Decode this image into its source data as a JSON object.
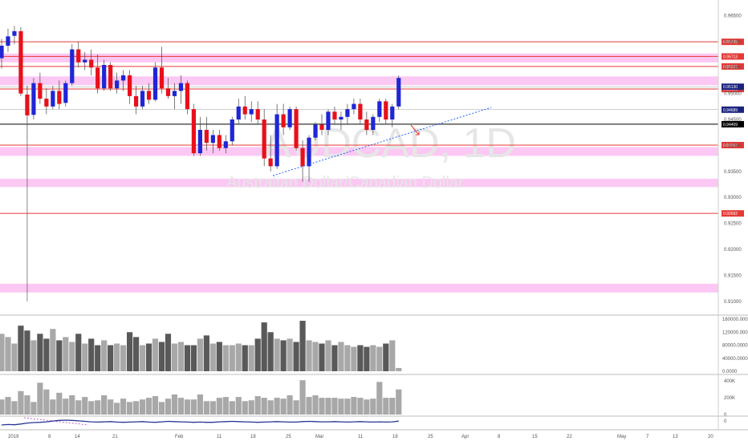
{
  "chart_data": {
    "type": "candlestick",
    "watermark": {
      "symbol": "AUDCAD, 1D",
      "name": "Australian Dollar/Canadian Dollar"
    },
    "price_axis": {
      "ticks": [
        "0.96500",
        "0.96000",
        "0.95500",
        "0.95000",
        "0.94500",
        "0.94000",
        "0.93500",
        "0.93000",
        "0.92500",
        "0.92000",
        "0.91500",
        "0.91000"
      ],
      "ylim": [
        0.9075,
        0.968
      ]
    },
    "time_axis": {
      "ticks": [
        "2019",
        "8",
        "14",
        "21",
        "Feb",
        "11",
        "18",
        "25",
        "Mar",
        "11",
        "18",
        "25",
        "Apr",
        "8",
        "15",
        "22",
        "May",
        "7",
        "13",
        "20"
      ]
    },
    "zones": [
      {
        "from": 0.9577,
        "to": 0.956
      },
      {
        "from": 0.9533,
        "to": 0.9516
      },
      {
        "from": 0.9397,
        "to": 0.938
      },
      {
        "from": 0.9336,
        "to": 0.932
      },
      {
        "from": 0.9134,
        "to": 0.9117
      }
    ],
    "levels": [
      {
        "price": 0.95995,
        "label": "0.95995",
        "color": "#e53935"
      },
      {
        "price": 0.95713,
        "label": "0.95713",
        "color": "#e53935"
      },
      {
        "price": 0.95521,
        "label": "0.95521",
        "color": "#e53935"
      },
      {
        "price": 0.95086,
        "label": "0.95086",
        "color": "#e53935"
      },
      {
        "price": 0.94007,
        "label": "0.94007",
        "color": "#e53935"
      },
      {
        "price": 0.92692,
        "label": "0.92692",
        "color": "#e53935"
      },
      {
        "price": 0.94409,
        "label": "0.94409",
        "color": "#000000"
      }
    ],
    "price_tags": [
      {
        "price": 0.9513,
        "label": "0.95130",
        "color": "#1a237e"
      },
      {
        "price": 0.94689,
        "label": "0.94689",
        "color": "#1a237e"
      }
    ],
    "trendline": {
      "from": [
        0,
        0.9342
      ],
      "to": [
        26,
        0.9473
      ],
      "note": "blue dotted support"
    },
    "candles": [
      {
        "o": 0.9568,
        "h": 0.9605,
        "l": 0.9548,
        "c": 0.9592
      },
      {
        "o": 0.9592,
        "h": 0.9625,
        "l": 0.958,
        "c": 0.961
      },
      {
        "o": 0.9611,
        "h": 0.963,
        "l": 0.9595,
        "c": 0.962
      },
      {
        "o": 0.962,
        "h": 0.9628,
        "l": 0.9495,
        "c": 0.95
      },
      {
        "o": 0.9498,
        "h": 0.9515,
        "l": 0.941,
        "c": 0.9458
      },
      {
        "o": 0.9459,
        "h": 0.953,
        "l": 0.945,
        "c": 0.952
      },
      {
        "o": 0.952,
        "h": 0.954,
        "l": 0.948,
        "c": 0.949
      },
      {
        "o": 0.949,
        "h": 0.951,
        "l": 0.946,
        "c": 0.9475
      },
      {
        "o": 0.9475,
        "h": 0.9515,
        "l": 0.947,
        "c": 0.9505
      },
      {
        "o": 0.9505,
        "h": 0.9525,
        "l": 0.947,
        "c": 0.948
      },
      {
        "o": 0.9482,
        "h": 0.9525,
        "l": 0.9475,
        "c": 0.952
      },
      {
        "o": 0.952,
        "h": 0.9595,
        "l": 0.9515,
        "c": 0.9585
      },
      {
        "o": 0.9585,
        "h": 0.96,
        "l": 0.955,
        "c": 0.956
      },
      {
        "o": 0.956,
        "h": 0.958,
        "l": 0.9545,
        "c": 0.9565
      },
      {
        "o": 0.9565,
        "h": 0.9585,
        "l": 0.9535,
        "c": 0.955
      },
      {
        "o": 0.955,
        "h": 0.9575,
        "l": 0.95,
        "c": 0.951
      },
      {
        "o": 0.951,
        "h": 0.9565,
        "l": 0.9505,
        "c": 0.9555
      },
      {
        "o": 0.9555,
        "h": 0.956,
        "l": 0.9505,
        "c": 0.951
      },
      {
        "o": 0.951,
        "h": 0.954,
        "l": 0.95,
        "c": 0.9525
      },
      {
        "o": 0.9525,
        "h": 0.9545,
        "l": 0.9505,
        "c": 0.9535
      },
      {
        "o": 0.9535,
        "h": 0.9545,
        "l": 0.948,
        "c": 0.9495
      },
      {
        "o": 0.9495,
        "h": 0.9515,
        "l": 0.946,
        "c": 0.9475
      },
      {
        "o": 0.9475,
        "h": 0.9515,
        "l": 0.947,
        "c": 0.9505
      },
      {
        "o": 0.9505,
        "h": 0.952,
        "l": 0.948,
        "c": 0.9488
      },
      {
        "o": 0.9488,
        "h": 0.956,
        "l": 0.9485,
        "c": 0.955
      },
      {
        "o": 0.955,
        "h": 0.959,
        "l": 0.95,
        "c": 0.951
      },
      {
        "o": 0.951,
        "h": 0.953,
        "l": 0.949,
        "c": 0.9495
      },
      {
        "o": 0.9495,
        "h": 0.952,
        "l": 0.947,
        "c": 0.9505
      },
      {
        "o": 0.9505,
        "h": 0.9535,
        "l": 0.948,
        "c": 0.952
      },
      {
        "o": 0.952,
        "h": 0.9525,
        "l": 0.946,
        "c": 0.947
      },
      {
        "o": 0.947,
        "h": 0.948,
        "l": 0.938,
        "c": 0.9385
      },
      {
        "o": 0.9385,
        "h": 0.9455,
        "l": 0.938,
        "c": 0.943
      },
      {
        "o": 0.943,
        "h": 0.9455,
        "l": 0.939,
        "c": 0.9405
      },
      {
        "o": 0.9405,
        "h": 0.943,
        "l": 0.9385,
        "c": 0.942
      },
      {
        "o": 0.942,
        "h": 0.943,
        "l": 0.939,
        "c": 0.9395
      },
      {
        "o": 0.9395,
        "h": 0.942,
        "l": 0.9385,
        "c": 0.9408
      },
      {
        "o": 0.9408,
        "h": 0.9455,
        "l": 0.94,
        "c": 0.945
      },
      {
        "o": 0.945,
        "h": 0.949,
        "l": 0.944,
        "c": 0.9475
      },
      {
        "o": 0.9475,
        "h": 0.9495,
        "l": 0.945,
        "c": 0.946
      },
      {
        "o": 0.946,
        "h": 0.9485,
        "l": 0.9445,
        "c": 0.947
      },
      {
        "o": 0.947,
        "h": 0.9485,
        "l": 0.944,
        "c": 0.945
      },
      {
        "o": 0.945,
        "h": 0.947,
        "l": 0.936,
        "c": 0.9375
      },
      {
        "o": 0.9375,
        "h": 0.942,
        "l": 0.935,
        "c": 0.936
      },
      {
        "o": 0.936,
        "h": 0.948,
        "l": 0.9355,
        "c": 0.946
      },
      {
        "o": 0.946,
        "h": 0.948,
        "l": 0.942,
        "c": 0.9435
      },
      {
        "o": 0.9435,
        "h": 0.9475,
        "l": 0.943,
        "c": 0.947
      },
      {
        "o": 0.947,
        "h": 0.9475,
        "l": 0.939,
        "c": 0.9395
      },
      {
        "o": 0.9395,
        "h": 0.941,
        "l": 0.933,
        "c": 0.936
      },
      {
        "o": 0.936,
        "h": 0.942,
        "l": 0.933,
        "c": 0.9415
      },
      {
        "o": 0.9415,
        "h": 0.9445,
        "l": 0.941,
        "c": 0.944
      },
      {
        "o": 0.944,
        "h": 0.946,
        "l": 0.942,
        "c": 0.943
      },
      {
        "o": 0.943,
        "h": 0.947,
        "l": 0.942,
        "c": 0.9465
      },
      {
        "o": 0.9465,
        "h": 0.9475,
        "l": 0.944,
        "c": 0.945
      },
      {
        "o": 0.945,
        "h": 0.9465,
        "l": 0.943,
        "c": 0.9455
      },
      {
        "o": 0.9455,
        "h": 0.948,
        "l": 0.944,
        "c": 0.947
      },
      {
        "o": 0.947,
        "h": 0.949,
        "l": 0.946,
        "c": 0.948
      },
      {
        "o": 0.948,
        "h": 0.949,
        "l": 0.944,
        "c": 0.945
      },
      {
        "o": 0.945,
        "h": 0.9465,
        "l": 0.942,
        "c": 0.943
      },
      {
        "o": 0.943,
        "h": 0.946,
        "l": 0.942,
        "c": 0.9455
      },
      {
        "o": 0.9455,
        "h": 0.949,
        "l": 0.9445,
        "c": 0.9485
      },
      {
        "o": 0.9485,
        "h": 0.949,
        "l": 0.944,
        "c": 0.945
      },
      {
        "o": 0.945,
        "h": 0.948,
        "l": 0.9435,
        "c": 0.9475
      },
      {
        "o": 0.9475,
        "h": 0.9535,
        "l": 0.947,
        "c": 0.953
      }
    ],
    "volume": {
      "ticks": [
        "160000.0000",
        "120000.0000",
        "80000.0000",
        "40000.0000",
        "0.0000"
      ],
      "max": 165000,
      "values": [
        115000,
        105000,
        85000,
        140000,
        125000,
        95000,
        115000,
        100000,
        130000,
        95000,
        105000,
        90000,
        115000,
        85000,
        100000,
        80000,
        95000,
        80000,
        85000,
        80000,
        120000,
        105000,
        80000,
        85000,
        100000,
        90000,
        115000,
        85000,
        90000,
        80000,
        80000,
        100000,
        110000,
        85000,
        90000,
        80000,
        80000,
        85000,
        80000,
        80000,
        100000,
        150000,
        120000,
        100000,
        95000,
        100000,
        90000,
        155000,
        95000,
        90000,
        85000,
        95000,
        80000,
        90000,
        80000,
        75000,
        80000,
        75000,
        80000,
        75000,
        85000,
        95000,
        10000
      ]
    },
    "indicator": {
      "ticks": [
        "400K",
        "200K",
        "0"
      ],
      "max": 450000,
      "values": [
        180000,
        210000,
        160000,
        280000,
        230000,
        150000,
        380000,
        300000,
        180000,
        260000,
        190000,
        230000,
        170000,
        210000,
        160000,
        170000,
        230000,
        180000,
        140000,
        190000,
        150000,
        160000,
        180000,
        200000,
        220000,
        150000,
        190000,
        240000,
        200000,
        180000,
        180000,
        240000,
        160000,
        160000,
        200000,
        210000,
        160000,
        210000,
        160000,
        170000,
        220000,
        200000,
        170000,
        200000,
        190000,
        230000,
        170000,
        410000,
        210000,
        230000,
        200000,
        200000,
        200000,
        190000,
        190000,
        210000,
        200000,
        180000,
        190000,
        390000,
        200000,
        200000,
        300000
      ]
    },
    "oscillator": {
      "ticks": [
        "0"
      ],
      "values": [
        -1,
        -0.8,
        -0.9,
        -0.6,
        -0.2,
        0.0,
        0.1,
        0.3,
        0.6,
        0.9,
        1.0,
        0.9,
        0.7,
        0.5,
        0.3,
        0.2,
        0.3,
        0.4,
        0.2,
        0.1,
        0.2,
        0.3,
        0.4,
        0.2,
        0.1,
        0.3,
        0.5,
        0.4,
        0.3,
        0.2,
        0.1,
        0.2,
        0.1,
        0.1,
        0.3,
        0.4,
        0.5,
        0.4,
        0.3,
        0.2,
        0.1,
        0.2,
        0.3,
        0.4,
        0.3,
        0.2,
        0.2,
        0.4,
        0.5,
        0.4,
        0.3,
        0.3,
        0.4,
        0.3,
        0.2,
        0.3,
        0.4,
        0.3,
        0.2,
        0.3,
        0.2,
        0.3,
        0.6
      ]
    },
    "colors": {
      "up": "#1e26d6",
      "down": "#e8101a",
      "zone": "#fbc8f3",
      "vol_dark": "#595959",
      "vol_light": "#a8a8a8"
    }
  }
}
